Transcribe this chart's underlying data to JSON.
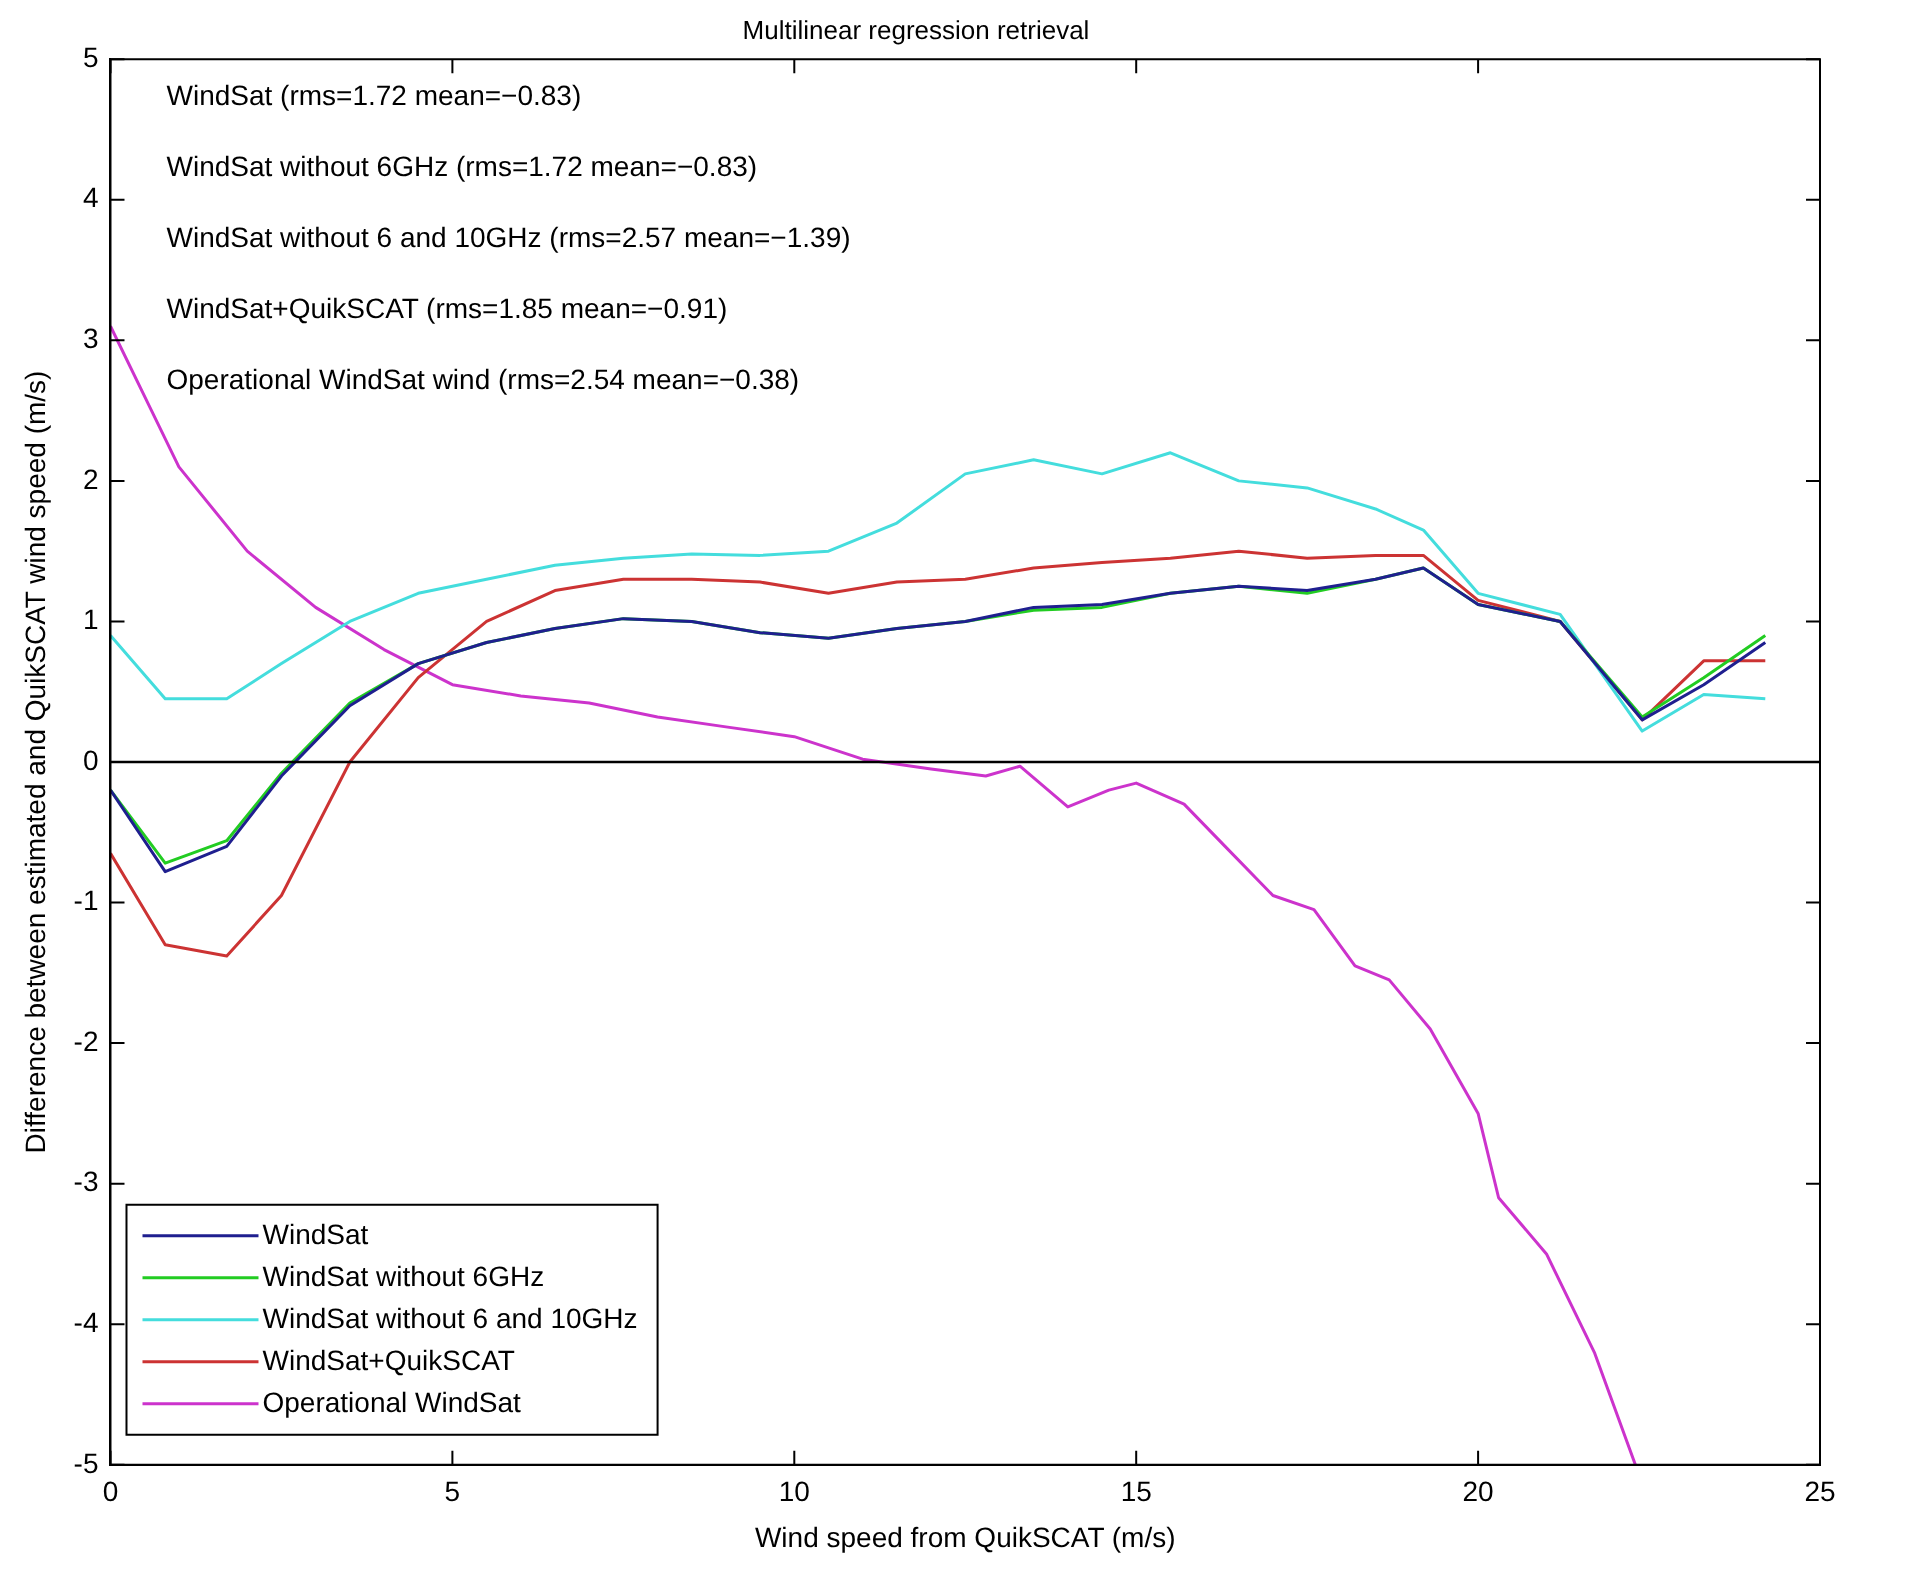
{
  "chart_data": {
    "type": "line",
    "title": "Multilinear regression retrieval",
    "xlabel": "Wind speed from QuikSCAT (m/s)",
    "ylabel": "Difference between estimated and QuikSCAT wind speed (m/s)",
    "annotations": [
      "WindSat (rms=1.72 mean=−0.83)",
      "WindSat without 6GHz (rms=1.72 mean=−0.83)",
      "WindSat without 6 and 10GHz (rms=2.57 mean=−1.39)",
      "WindSat+QuikSCAT (rms=1.85 mean=−0.91)",
      "Operational WindSat wind (rms=2.54 mean=−0.38)"
    ],
    "x": [
      0,
      0.8,
      1.7,
      2.5,
      3.5,
      4.5,
      5.5,
      6.5,
      7.5,
      8.5,
      9.5,
      10.5,
      11.5,
      12.5,
      13.5,
      14.5,
      15.5,
      16.5,
      17.5,
      18.5,
      19.2,
      20,
      21.2,
      22.4,
      23.3,
      24.2
    ],
    "series": [
      {
        "name": "WindSat",
        "color": "#1f1f8f",
        "values": [
          -0.2,
          -0.78,
          -0.6,
          -0.1,
          0.4,
          0.7,
          0.85,
          0.95,
          1.02,
          1.0,
          0.92,
          0.88,
          0.95,
          1.0,
          1.1,
          1.12,
          1.2,
          1.25,
          1.22,
          1.3,
          1.38,
          1.12,
          1.0,
          0.3,
          0.55,
          0.85
        ]
      },
      {
        "name": "WindSat without 6GHz",
        "color": "#22cc22",
        "values": [
          -0.2,
          -0.72,
          -0.56,
          -0.08,
          0.42,
          0.7,
          0.85,
          0.95,
          1.02,
          1.0,
          0.92,
          0.88,
          0.95,
          1.0,
          1.08,
          1.1,
          1.2,
          1.25,
          1.2,
          1.3,
          1.38,
          1.12,
          1.0,
          0.32,
          0.6,
          0.9
        ]
      },
      {
        "name": "WindSat without 6 and 10GHz",
        "color": "#44dddd",
        "values": [
          0.9,
          0.45,
          0.45,
          0.7,
          1.0,
          1.2,
          1.3,
          1.4,
          1.45,
          1.48,
          1.47,
          1.5,
          1.7,
          2.05,
          2.15,
          2.05,
          2.2,
          2.0,
          1.95,
          1.8,
          1.65,
          1.2,
          1.05,
          0.22,
          0.48,
          0.45
        ]
      },
      {
        "name": "WindSat+QuikSCAT",
        "color": "#cc3333",
        "values": [
          -0.65,
          -1.3,
          -1.38,
          -0.95,
          0.0,
          0.6,
          1.0,
          1.22,
          1.3,
          1.3,
          1.28,
          1.2,
          1.28,
          1.3,
          1.38,
          1.42,
          1.45,
          1.5,
          1.45,
          1.47,
          1.47,
          1.15,
          1.0,
          0.3,
          0.72,
          0.72
        ]
      },
      {
        "name": "Operational WindSat",
        "color": "#cc33cc",
        "x": [
          0,
          0.6,
          1,
          2,
          3,
          4,
          5,
          6,
          7,
          8,
          9,
          10,
          11,
          12,
          12.8,
          13.3,
          14,
          14.6,
          15,
          15.7,
          16.3,
          17,
          17.6,
          18.2,
          18.7,
          19.3,
          20,
          20.3,
          21,
          21.7,
          22.3
        ],
        "values": [
          3.1,
          2.5,
          2.1,
          1.5,
          1.1,
          0.8,
          0.55,
          0.47,
          0.42,
          0.32,
          0.25,
          0.18,
          0.02,
          -0.05,
          -0.1,
          -0.03,
          -0.32,
          -0.2,
          -0.15,
          -0.3,
          -0.6,
          -0.95,
          -1.05,
          -1.45,
          -1.55,
          -1.9,
          -2.5,
          -3.1,
          -3.5,
          -4.2,
          -5.0
        ]
      }
    ],
    "xlim": [
      0,
      25
    ],
    "xticks": [
      0,
      5,
      10,
      15,
      20,
      25
    ],
    "ylim": [
      -5,
      5
    ],
    "yticks": [
      -5,
      -4,
      -3,
      -2,
      -1,
      0,
      1,
      2,
      3,
      4,
      5
    ],
    "ref_lines": [
      {
        "axis": "y",
        "value": 0,
        "color": "#000000"
      }
    ],
    "legend": "bottom left",
    "grid": false,
    "marker": "none",
    "line_style": "solid"
  }
}
